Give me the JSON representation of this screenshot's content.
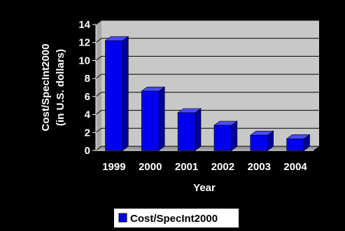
{
  "chart_data": {
    "type": "bar",
    "categories": [
      "1999",
      "2000",
      "2001",
      "2002",
      "2003",
      "2004"
    ],
    "series": [
      {
        "name": "Cost/SpecInt2000",
        "values": [
          12.2,
          6.6,
          4.2,
          2.8,
          1.7,
          1.3
        ]
      }
    ],
    "title": "",
    "xlabel": "Year",
    "ylabel_lines": [
      "Cost/SpecInt2000",
      "(in U.S. dollars)"
    ],
    "ylim": [
      0,
      14
    ],
    "yticks": [
      0,
      2,
      4,
      6,
      8,
      10,
      12,
      14
    ],
    "grid": true,
    "legend_position": "bottom-center",
    "colors": {
      "background": "#000000",
      "plot_back_wall": "#c8c8c8",
      "plot_floor": "#9a9a9a",
      "bar_front": "#0000ee",
      "bar_top": "#4a4aff",
      "bar_side": "#00009a",
      "gridline": "#000000",
      "text": "#ffffff",
      "legend_bg": "#ffffff"
    }
  }
}
